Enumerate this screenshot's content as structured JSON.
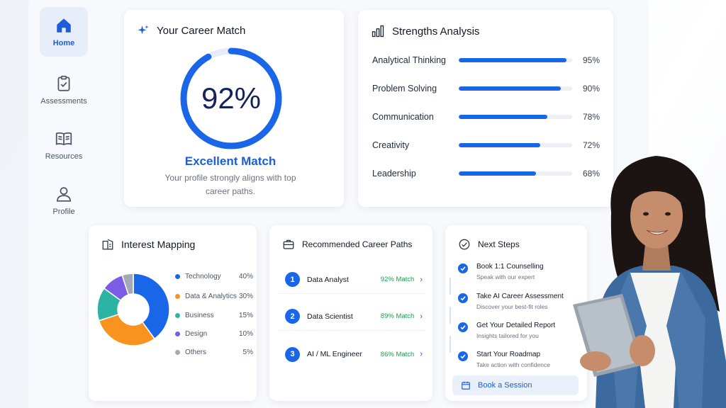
{
  "sidebar": {
    "items": [
      {
        "label": "Home",
        "icon": "home-icon",
        "active": true
      },
      {
        "label": "Assessments",
        "icon": "clipboard-icon",
        "active": false
      },
      {
        "label": "Resources",
        "icon": "book-icon",
        "active": false
      },
      {
        "label": "Profile",
        "icon": "user-icon",
        "active": false
      }
    ]
  },
  "career_match": {
    "title": "Your Career Match",
    "value_text": "92%",
    "value": 0.92,
    "label": "Excellent Match",
    "description": "Your profile strongly aligns with top career paths."
  },
  "strengths": {
    "title": "Strengths Analysis",
    "items": [
      {
        "name": "Analytical Thinking",
        "pct_text": "95%",
        "value": 0.95
      },
      {
        "name": "Problem Solving",
        "pct_text": "90%",
        "value": 0.9
      },
      {
        "name": "Communication",
        "pct_text": "78%",
        "value": 0.78
      },
      {
        "name": "Creativity",
        "pct_text": "72%",
        "value": 0.72
      },
      {
        "name": "Leadership",
        "pct_text": "68%",
        "value": 0.68
      }
    ]
  },
  "interest": {
    "title": "Interest Mapping",
    "items": [
      {
        "name": "Technology",
        "pct_text": "40%",
        "value": 40,
        "color": "#1a66e8"
      },
      {
        "name": "Data & Analytics",
        "pct_text": "30%",
        "value": 30,
        "color": "#f7931e"
      },
      {
        "name": "Business",
        "pct_text": "15%",
        "value": 15,
        "color": "#2bb3a3"
      },
      {
        "name": "Design",
        "pct_text": "10%",
        "value": 10,
        "color": "#7b5ce6"
      },
      {
        "name": "Others",
        "pct_text": "5%",
        "value": 5,
        "color": "#a3aab5"
      }
    ]
  },
  "paths": {
    "title": "Recommended Career Paths",
    "items": [
      {
        "num": "1",
        "name": "Data Analyst",
        "match": "92% Match"
      },
      {
        "num": "2",
        "name": "Data Scientist",
        "match": "89% Match"
      },
      {
        "num": "3",
        "name": "AI / ML Engineer",
        "match": "86% Match"
      }
    ]
  },
  "steps": {
    "title": "Next Steps",
    "items": [
      {
        "title": "Book 1:1 Counselling",
        "subtitle": "Speak with our expert"
      },
      {
        "title": "Take AI Career Assessment",
        "subtitle": "Discover your best-fit roles"
      },
      {
        "title": "Get Your Detailed Report",
        "subtitle": "Insights tailored for you"
      },
      {
        "title": "Start Your Roadmap",
        "subtitle": "Take action with confidence"
      }
    ],
    "button_label": "Book a Session"
  },
  "colors": {
    "accent": "#1a66e8",
    "match_green": "#16a34a",
    "ring_track": "#e6edf8"
  }
}
